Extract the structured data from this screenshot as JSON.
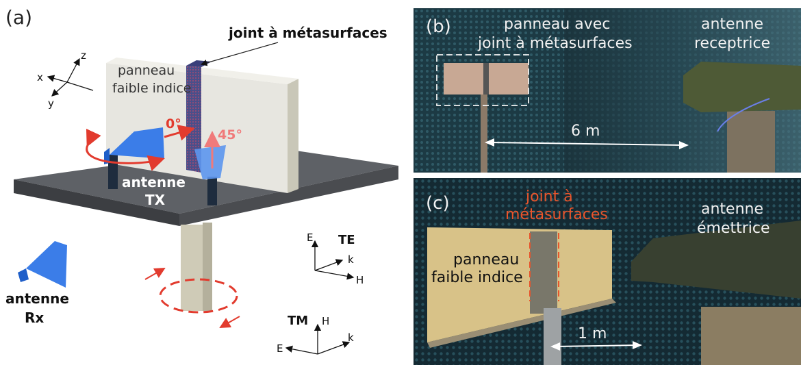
{
  "diagram": {
    "panel_letter": "(a)",
    "joint_label": "joint à métasurfaces",
    "panel_label_line1": "panneau",
    "panel_label_line2": "faible indice",
    "angle_0": "0°",
    "angle_45": "45°",
    "tx_line1": "antenne",
    "tx_line2": "TX",
    "rx_line1": "antenne",
    "rx_line2": "Rx",
    "axes": {
      "x": "x",
      "y": "y",
      "z": "z"
    },
    "te": {
      "label": "TE",
      "e": "E",
      "k": "k",
      "h": "H"
    },
    "tm": {
      "label": "TM",
      "h": "H",
      "e": "E",
      "k": "k"
    }
  },
  "photo_b": {
    "panel_letter": "(b)",
    "panel_line1": "panneau avec",
    "panel_line2": "joint à métasurfaces",
    "antenna_line1": "antenne",
    "antenna_line2": "receptrice",
    "distance": "6 m"
  },
  "photo_c": {
    "panel_letter": "(c)",
    "joint_line1": "joint à",
    "joint_line2": "métasurfaces",
    "panel_line1": "panneau",
    "panel_line2": "faible indice",
    "antenna_line1": "antenne",
    "antenna_line2": "émettrice",
    "distance": "1 m"
  },
  "colors": {
    "red_annotation": "#e8552c",
    "antenna_blue": "#3b7de8",
    "table_gray": "#5e6166",
    "panel_white": "#e7e6e0"
  }
}
